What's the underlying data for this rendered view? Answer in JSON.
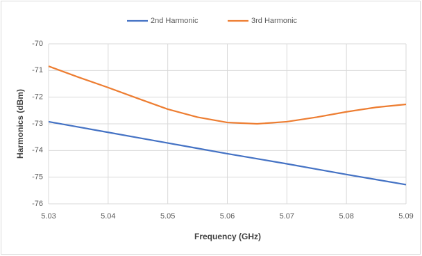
{
  "chart_data": {
    "type": "line",
    "xlabel": "Frequency (GHz)",
    "ylabel": "Harmonics (dBm)",
    "x": [
      5.03,
      5.035,
      5.04,
      5.045,
      5.05,
      5.055,
      5.06,
      5.065,
      5.07,
      5.075,
      5.08,
      5.085,
      5.09
    ],
    "series": [
      {
        "name": "2nd Harmonic",
        "color": "#4472c4",
        "values": [
          -72.92,
          -73.12,
          -73.32,
          -73.52,
          -73.72,
          -73.92,
          -74.12,
          -74.31,
          -74.5,
          -74.7,
          -74.9,
          -75.09,
          -75.28
        ]
      },
      {
        "name": "3rd Harmonic",
        "color": "#ed7d31",
        "values": [
          -70.84,
          -71.25,
          -71.64,
          -72.05,
          -72.45,
          -72.75,
          -72.95,
          -73.0,
          -72.92,
          -72.75,
          -72.55,
          -72.38,
          -72.27
        ]
      }
    ],
    "xlim": [
      5.03,
      5.09
    ],
    "xticks": [
      5.03,
      5.04,
      5.05,
      5.06,
      5.07,
      5.08,
      5.09
    ],
    "ylim": [
      -76,
      -70
    ],
    "yticks": [
      -70,
      -71,
      -72,
      -73,
      -74,
      -75,
      -76
    ],
    "grid": true,
    "legend": "top"
  }
}
